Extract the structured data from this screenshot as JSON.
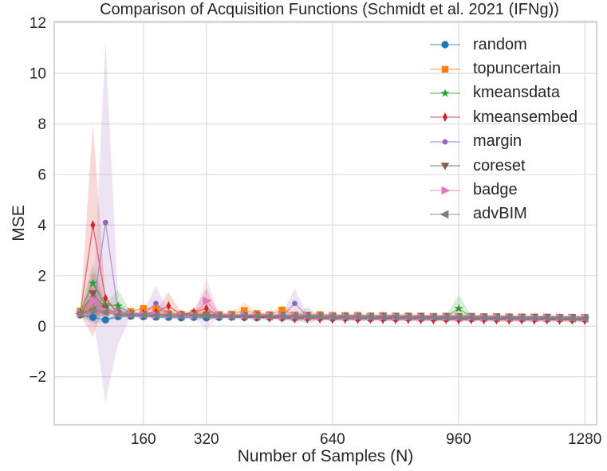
{
  "palette": {
    "background": "#ffffff",
    "grid_color": "#dcdcdc",
    "spine_color": "#c9c9c9",
    "text_color": "#262626"
  },
  "chart_data": {
    "type": "line",
    "title": "Comparison of Acquisition Functions (Schmidt et al. 2021 (IFNg))",
    "xlabel": "Number of Samples (N)",
    "ylabel": "MSE",
    "grid": true,
    "legend_position": "upper right",
    "xlim": [
      -66,
      1310
    ],
    "ylim": [
      -3.9,
      12.05
    ],
    "xticks": [
      160,
      320,
      640,
      960,
      1280
    ],
    "xtick_labels": [
      "160",
      "320",
      "640",
      "960",
      "1280"
    ],
    "yticks": [
      -2,
      0,
      2,
      4,
      6,
      8,
      10,
      12
    ],
    "ytick_labels": [
      "−2",
      "0",
      "2",
      "4",
      "6",
      "8",
      "10",
      "12"
    ],
    "x": [
      0,
      32,
      64,
      96,
      128,
      160,
      192,
      224,
      256,
      288,
      320,
      352,
      384,
      416,
      448,
      480,
      512,
      544,
      576,
      608,
      640,
      672,
      704,
      736,
      768,
      800,
      832,
      864,
      896,
      928,
      960,
      992,
      1024,
      1056,
      1088,
      1120,
      1152,
      1184,
      1216,
      1248,
      1280
    ],
    "default_band_halfwidth": 0.07,
    "series": [
      {
        "name": "random",
        "color": "#1f77b4",
        "marker": "circle",
        "values": [
          0.45,
          0.35,
          0.25,
          0.38,
          0.4,
          0.38,
          0.36,
          0.35,
          0.33,
          0.35,
          0.33,
          0.35,
          0.36,
          0.35,
          0.34,
          0.35,
          0.34,
          0.33,
          0.34,
          0.33,
          0.32,
          0.33,
          0.32,
          0.31,
          0.32,
          0.31,
          0.32,
          0.31,
          0.31,
          0.3,
          0.31,
          0.3,
          0.31,
          0.3,
          0.3,
          0.29,
          0.3,
          0.29,
          0.29,
          0.28,
          0.28
        ],
        "bands": [
          {
            "i": 1,
            "lo": 0.1,
            "hi": 0.9
          },
          {
            "i": 18,
            "lo": 0.1,
            "hi": 0.75
          }
        ]
      },
      {
        "name": "topuncertain",
        "color": "#ff7f0e",
        "marker": "square",
        "values": [
          0.6,
          0.65,
          0.55,
          0.5,
          0.58,
          0.7,
          0.67,
          0.5,
          0.48,
          0.52,
          0.47,
          0.46,
          0.48,
          0.62,
          0.5,
          0.46,
          0.64,
          0.45,
          0.44,
          0.46,
          0.43,
          0.42,
          0.43,
          0.41,
          0.42,
          0.4,
          0.41,
          0.4,
          0.39,
          0.4,
          0.39,
          0.39,
          0.38,
          0.38,
          0.37,
          0.37,
          0.36,
          0.36,
          0.35,
          0.35,
          0.34
        ],
        "bands": [
          {
            "i": 1,
            "lo": 0.4,
            "hi": 1.2
          },
          {
            "i": 13,
            "lo": 0.4,
            "hi": 0.95
          },
          {
            "i": 16,
            "lo": 0.42,
            "hi": 0.85
          }
        ]
      },
      {
        "name": "kmeansdata",
        "color": "#2ca02c",
        "marker": "star",
        "values": [
          0.55,
          1.7,
          0.85,
          0.8,
          0.5,
          0.45,
          0.44,
          0.42,
          0.45,
          0.42,
          0.4,
          0.42,
          0.4,
          0.41,
          0.4,
          0.39,
          0.4,
          0.38,
          0.39,
          0.38,
          0.37,
          0.38,
          0.36,
          0.37,
          0.36,
          0.37,
          0.35,
          0.36,
          0.35,
          0.36,
          0.7,
          0.36,
          0.35,
          0.34,
          0.35,
          0.34,
          0.33,
          0.34,
          0.33,
          0.32,
          0.32
        ],
        "bands": [
          {
            "i": 1,
            "lo": 0.5,
            "hi": 2.5
          },
          {
            "i": 3,
            "lo": 0.35,
            "hi": 1.45
          },
          {
            "i": 30,
            "lo": 0.25,
            "hi": 1.25
          }
        ]
      },
      {
        "name": "kmeansembed",
        "color": "#d62728",
        "marker": "thin-diamond",
        "values": [
          0.5,
          4.0,
          1.1,
          0.5,
          0.45,
          0.5,
          0.55,
          0.8,
          0.45,
          0.55,
          0.7,
          0.4,
          0.38,
          0.36,
          0.35,
          0.33,
          0.32,
          0.3,
          0.3,
          0.29,
          0.28,
          0.28,
          0.27,
          0.28,
          0.27,
          0.26,
          0.27,
          0.26,
          0.25,
          0.26,
          0.25,
          0.26,
          0.25,
          0.25,
          0.24,
          0.25,
          0.24,
          0.25,
          0.24,
          0.24,
          0.23
        ],
        "bands": [
          {
            "i": 1,
            "lo": -0.4,
            "hi": 8.0
          },
          {
            "i": 7,
            "lo": 0.3,
            "hi": 1.35
          },
          {
            "i": 10,
            "lo": 0.25,
            "hi": 1.5
          }
        ]
      },
      {
        "name": "margin",
        "color": "#9467bd",
        "marker": "small-circle",
        "values": [
          0.5,
          0.6,
          4.1,
          0.6,
          0.45,
          0.48,
          0.9,
          0.45,
          0.42,
          0.4,
          0.42,
          0.4,
          0.39,
          0.4,
          0.38,
          0.39,
          0.4,
          0.9,
          0.4,
          0.38,
          0.37,
          0.36,
          0.37,
          0.35,
          0.36,
          0.35,
          0.34,
          0.35,
          0.34,
          0.33,
          0.34,
          0.33,
          0.34,
          0.33,
          0.32,
          0.33,
          0.32,
          0.31,
          0.32,
          0.31,
          0.3
        ],
        "bands": [
          {
            "i": 2,
            "lo": -3.0,
            "hi": 11.3
          },
          {
            "i": 3,
            "lo": -0.7,
            "hi": 1.0
          },
          {
            "i": 6,
            "lo": 0.3,
            "hi": 1.6
          },
          {
            "i": 17,
            "lo": 0.1,
            "hi": 1.5
          }
        ]
      },
      {
        "name": "coreset",
        "color": "#8c564b",
        "marker": "triangle-down",
        "values": [
          0.45,
          1.3,
          0.7,
          0.5,
          0.48,
          0.46,
          0.45,
          0.46,
          0.44,
          0.45,
          0.43,
          0.44,
          0.42,
          0.43,
          0.44,
          0.42,
          0.43,
          0.41,
          0.42,
          0.41,
          0.4,
          0.41,
          0.4,
          0.39,
          0.4,
          0.41,
          0.39,
          0.4,
          0.38,
          0.39,
          0.38,
          0.39,
          0.37,
          0.38,
          0.37,
          0.36,
          0.37,
          0.36,
          0.35,
          0.36,
          0.35
        ],
        "bands": [
          {
            "i": 1,
            "lo": 0.3,
            "hi": 2.2
          }
        ]
      },
      {
        "name": "badge",
        "color": "#e377c2",
        "marker": "triangle-right",
        "values": [
          0.5,
          1.0,
          0.6,
          0.5,
          0.48,
          0.46,
          0.45,
          0.44,
          0.45,
          0.43,
          1.0,
          0.44,
          0.42,
          0.43,
          0.41,
          0.42,
          0.4,
          0.41,
          0.4,
          0.39,
          0.4,
          0.38,
          0.39,
          0.38,
          0.37,
          0.38,
          0.37,
          0.36,
          0.37,
          0.36,
          0.35,
          0.36,
          0.35,
          0.36,
          0.34,
          0.35,
          0.34,
          0.33,
          0.34,
          0.33,
          0.33
        ],
        "bands": [
          {
            "i": 1,
            "lo": 0.25,
            "hi": 2.0
          },
          {
            "i": 10,
            "lo": -0.15,
            "hi": 1.9
          }
        ]
      },
      {
        "name": "advBIM",
        "color": "#7f7f7f",
        "marker": "triangle-left",
        "values": [
          0.5,
          0.65,
          0.55,
          0.45,
          0.44,
          0.43,
          0.42,
          0.43,
          0.41,
          0.42,
          0.44,
          0.41,
          0.4,
          0.41,
          0.4,
          0.39,
          0.4,
          0.39,
          0.38,
          0.39,
          0.38,
          0.37,
          0.38,
          0.37,
          0.36,
          0.37,
          0.36,
          0.35,
          0.36,
          0.35,
          0.34,
          0.35,
          0.34,
          0.33,
          0.34,
          0.33,
          0.32,
          0.33,
          0.32,
          0.31,
          0.3
        ],
        "bands": [
          {
            "i": 1,
            "lo": 0.2,
            "hi": 1.3
          }
        ]
      }
    ]
  }
}
